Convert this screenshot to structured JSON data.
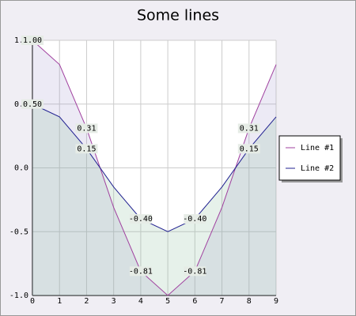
{
  "chart_data": {
    "type": "line",
    "title": "Some lines",
    "x": [
      0,
      1,
      2,
      3,
      4,
      5,
      6,
      7,
      8,
      9
    ],
    "series": [
      {
        "name": "Line #1",
        "color": "#a0409f",
        "fill": "rgba(150,140,200,0.18)",
        "values": [
          1,
          0.81,
          0.31,
          -0.31,
          -0.81,
          -1,
          -0.81,
          -0.31,
          0.31,
          0.81
        ],
        "value_labels": [
          "1.00",
          null,
          "0.31",
          null,
          "-0.81",
          null,
          "-0.81",
          null,
          "0.31",
          null
        ]
      },
      {
        "name": "Line #2",
        "color": "#202090",
        "fill": "rgba(140,190,160,0.22)",
        "values": [
          0.5,
          0.4,
          0.15,
          -0.15,
          -0.4,
          -0.5,
          -0.4,
          -0.15,
          0.15,
          0.4
        ],
        "value_labels": [
          "0.50",
          null,
          "0.15",
          null,
          "-0.40",
          null,
          "-0.40",
          null,
          "0.15",
          null
        ]
      }
    ],
    "xlim": [
      0,
      9
    ],
    "xticks": [
      0,
      1,
      2,
      3,
      4,
      5,
      6,
      7,
      8,
      9
    ],
    "ylim": [
      -1,
      1
    ],
    "yticks": [
      {
        "value": -1,
        "label": "-1.0"
      },
      -0.5,
      {
        "value": 0,
        "label": "0.0"
      },
      0.5,
      {
        "value": 1,
        "label": "1.0"
      }
    ],
    "grid": true,
    "legend": "right"
  }
}
